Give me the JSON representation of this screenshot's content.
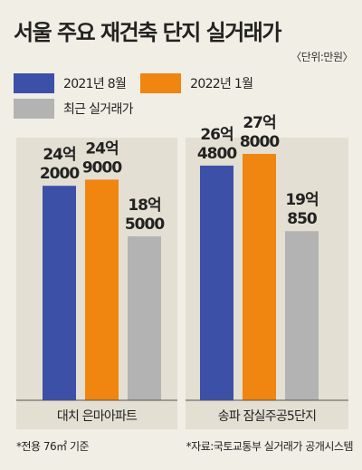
{
  "title": "서울 주요 재건축 단지 실거래가",
  "unit": "〈단위:만원〉",
  "legend": [
    {
      "label": "2021년 8월",
      "color": "#3d50a8"
    },
    {
      "label": "2022년 1월",
      "color": "#f0850f"
    },
    {
      "label": "최근 실거래가",
      "color": "#b3b3b3"
    }
  ],
  "footnotes": {
    "left": "*전용 76㎡ 기준",
    "right": "*자료:국토교통부 실거래가 공개시스템"
  },
  "chart_data": {
    "type": "bar",
    "categories": [
      "대치 은마아파트",
      "송파 잠실주공5단지"
    ],
    "series": [
      {
        "name": "2021년 8월",
        "values": [
          242000,
          264800
        ],
        "labels": [
          [
            "24억",
            "2000"
          ],
          [
            "26억",
            "4800"
          ]
        ],
        "color": "#3d50a8"
      },
      {
        "name": "2022년 1월",
        "values": [
          249000,
          278000
        ],
        "labels": [
          [
            "24억",
            "9000"
          ],
          [
            "27억",
            "8000"
          ]
        ],
        "color": "#f0850f"
      },
      {
        "name": "최근 실거래가",
        "values": [
          185000,
          190850
        ],
        "labels": [
          [
            "18억",
            "5000"
          ],
          [
            "19억",
            "850"
          ]
        ],
        "color": "#b3b3b3"
      }
    ],
    "background": "#f1eee6",
    "group_backgrounds": "#e3dfd2",
    "gridlines": false
  }
}
